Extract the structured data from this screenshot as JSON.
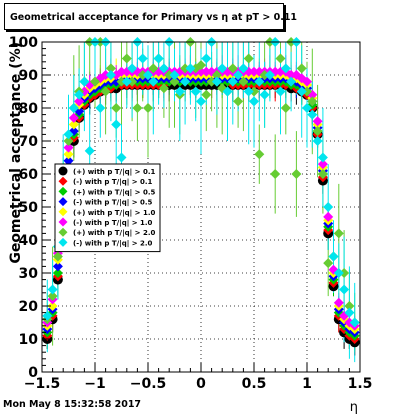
{
  "title": "Geometrical acceptance for Primary vs   η at pT > 0.11",
  "footer": "Mon May  8 15:32:58 2017",
  "chart_data": {
    "type": "scatter",
    "xlabel": "η",
    "ylabel": "Geometrical acceptance (%)",
    "xlim": [
      -1.5,
      1.5
    ],
    "ylim": [
      0,
      100
    ],
    "xticks": [
      "−1.5",
      "−1",
      "−0.5",
      "0",
      "0.5",
      "1",
      "1.5"
    ],
    "yticks": [
      "0",
      "10",
      "20",
      "30",
      "40",
      "50",
      "60",
      "70",
      "80",
      "90",
      "100"
    ],
    "grid": true,
    "legend_position": "left-middle",
    "x": [
      -1.45,
      -1.4,
      -1.35,
      -1.3,
      -1.25,
      -1.2,
      -1.15,
      -1.1,
      -1.05,
      -1.0,
      -0.95,
      -0.9,
      -0.85,
      -0.8,
      -0.75,
      -0.7,
      -0.65,
      -0.6,
      -0.55,
      -0.5,
      -0.45,
      -0.4,
      -0.35,
      -0.3,
      -0.25,
      -0.2,
      -0.15,
      -0.1,
      -0.05,
      0.0,
      0.05,
      0.1,
      0.15,
      0.2,
      0.25,
      0.3,
      0.35,
      0.4,
      0.45,
      0.5,
      0.55,
      0.6,
      0.65,
      0.7,
      0.75,
      0.8,
      0.85,
      0.9,
      0.95,
      1.0,
      1.05,
      1.1,
      1.15,
      1.2,
      1.25,
      1.3,
      1.35,
      1.4,
      1.45
    ],
    "series": [
      {
        "name": "(+) with p T/|q| > 0.1",
        "color": "#000000",
        "marker": "circle",
        "values": [
          10,
          16,
          28,
          45,
          60,
          70,
          77,
          81,
          83,
          84,
          85,
          86,
          86,
          86,
          87,
          87,
          87,
          87,
          87,
          87,
          87,
          87,
          87,
          87,
          87,
          87,
          87,
          87,
          87,
          87,
          87,
          87,
          87,
          87,
          87,
          87,
          87,
          87,
          87,
          87,
          87,
          87,
          87,
          87,
          87,
          87,
          86,
          86,
          85,
          84,
          80,
          72,
          58,
          42,
          26,
          16,
          12,
          10,
          9
        ]
      },
      {
        "name": "(-) with p T/|q| > 0.1",
        "color": "#ff0000",
        "marker": "diamond",
        "values": [
          11,
          17,
          29,
          46,
          61,
          71,
          77,
          81,
          83,
          84,
          85,
          86,
          86,
          87,
          87,
          87,
          87,
          87,
          87,
          87,
          87,
          87,
          87,
          88,
          88,
          88,
          88,
          88,
          88,
          88,
          88,
          88,
          88,
          88,
          88,
          87,
          87,
          87,
          87,
          87,
          87,
          87,
          87,
          87,
          87,
          87,
          87,
          86,
          85,
          84,
          80,
          72,
          59,
          43,
          27,
          17,
          13,
          11,
          10
        ]
      },
      {
        "name": "(+) with p T/|q| > 0.5",
        "color": "#00cc00",
        "marker": "diamond",
        "values": [
          12,
          18,
          30,
          47,
          62,
          72,
          78,
          82,
          84,
          85,
          86,
          87,
          87,
          87,
          88,
          88,
          88,
          88,
          88,
          88,
          88,
          88,
          88,
          88,
          88,
          88,
          88,
          88,
          88,
          88,
          88,
          88,
          88,
          88,
          88,
          88,
          88,
          88,
          88,
          88,
          88,
          88,
          88,
          88,
          88,
          88,
          87,
          87,
          86,
          85,
          81,
          73,
          60,
          44,
          28,
          18,
          14,
          12,
          11
        ]
      },
      {
        "name": "(-) with p T/|q| > 0.5",
        "color": "#0000ff",
        "marker": "diamond",
        "values": [
          13,
          19,
          32,
          49,
          64,
          73,
          79,
          83,
          85,
          86,
          87,
          88,
          88,
          88,
          88,
          89,
          89,
          89,
          89,
          89,
          89,
          89,
          89,
          89,
          89,
          89,
          89,
          89,
          89,
          89,
          89,
          89,
          89,
          89,
          89,
          89,
          89,
          89,
          89,
          89,
          89,
          89,
          89,
          89,
          89,
          89,
          88,
          88,
          87,
          86,
          82,
          74,
          61,
          45,
          29,
          19,
          15,
          13,
          12
        ]
      },
      {
        "name": "(+) with p T/|q| > 1.0",
        "color": "#ffff00",
        "marker": "diamond",
        "values": [
          14,
          20,
          34,
          51,
          66,
          75,
          81,
          84,
          86,
          87,
          88,
          89,
          89,
          90,
          90,
          90,
          90,
          90,
          90,
          90,
          90,
          90,
          90,
          90,
          90,
          90,
          90,
          90,
          90,
          90,
          90,
          90,
          90,
          90,
          90,
          90,
          90,
          90,
          90,
          90,
          90,
          90,
          90,
          90,
          90,
          90,
          89,
          89,
          88,
          87,
          83,
          75,
          62,
          46,
          30,
          20,
          16,
          14,
          13
        ]
      },
      {
        "name": "(-) with p T/|q| > 1.0",
        "color": "#ff00ff",
        "marker": "diamond",
        "values": [
          15,
          22,
          36,
          53,
          68,
          77,
          82,
          85,
          87,
          88,
          89,
          90,
          90,
          90,
          91,
          91,
          91,
          91,
          91,
          91,
          91,
          91,
          91,
          91,
          91,
          91,
          91,
          91,
          91,
          91,
          91,
          91,
          91,
          91,
          91,
          91,
          91,
          91,
          91,
          91,
          91,
          91,
          91,
          91,
          91,
          91,
          90,
          90,
          89,
          88,
          84,
          76,
          63,
          47,
          31,
          21,
          17,
          15,
          14
        ]
      },
      {
        "name": "(+) with p T/|q| > 2.0",
        "color": "#66cc33",
        "marker": "diamond",
        "values": [
          16,
          23,
          35,
          55,
          70,
          80,
          85,
          88,
          100,
          88,
          100,
          85,
          92,
          80,
          88,
          95,
          88,
          80,
          90,
          80,
          92,
          95,
          86,
          90,
          88,
          84,
          92,
          100,
          92,
          93,
          84,
          88,
          90,
          86,
          85,
          92,
          82,
          88,
          95,
          85,
          66,
          90,
          100,
          60,
          95,
          80,
          100,
          60,
          92,
          85,
          82,
          73,
          60,
          33,
          35,
          42,
          30,
          20,
          15
        ]
      },
      {
        "name": "(-) with p T/|q| > 2.0",
        "color": "#00e5ee",
        "marker": "diamond",
        "values": [
          17,
          25,
          38,
          58,
          72,
          80,
          84,
          88,
          67,
          100,
          80,
          100,
          90,
          75,
          65,
          88,
          92,
          100,
          95,
          90,
          88,
          95,
          92,
          100,
          90,
          85,
          88,
          92,
          85,
          82,
          95,
          100,
          88,
          92,
          85,
          88,
          90,
          92,
          85,
          82,
          88,
          84,
          90,
          100,
          85,
          92,
          88,
          100,
          85,
          80,
          78,
          70,
          65,
          50,
          35,
          30,
          25,
          18,
          15
        ]
      }
    ]
  }
}
